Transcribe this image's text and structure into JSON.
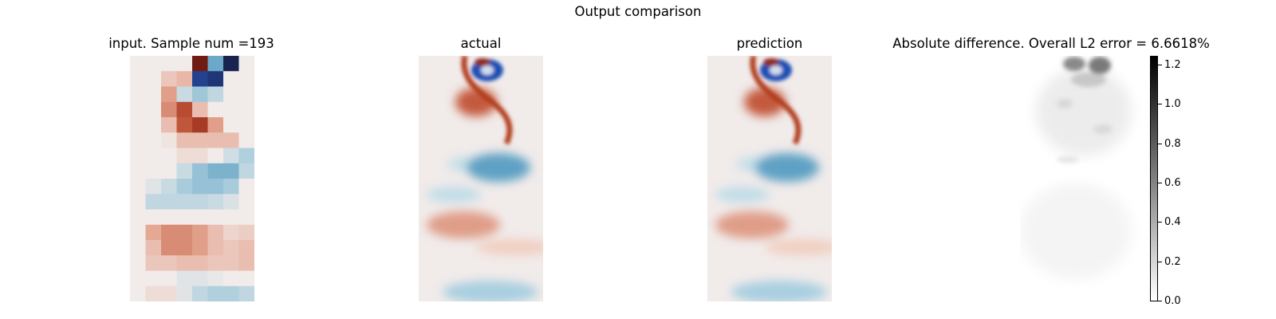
{
  "figure": {
    "suptitle": "Output comparison"
  },
  "chart_data": [
    {
      "type": "heatmap",
      "title": "input. Sample num =193",
      "grid": false,
      "colormap": "red-white-blue diverging",
      "rows": 16,
      "cols": 8
    },
    {
      "type": "heatmap",
      "title": "actual",
      "grid": false,
      "colormap": "red-white-blue diverging"
    },
    {
      "type": "heatmap",
      "title": "prediction",
      "grid": false,
      "colormap": "red-white-blue diverging"
    },
    {
      "type": "heatmap",
      "title": "Absolute difference. Overall L2 error = 6.6618%",
      "grid": false,
      "colormap": "grayscale (white to black)",
      "colorbar": {
        "range": [
          0.0,
          1.25
        ],
        "ticks": [
          0.0,
          0.2,
          0.4,
          0.6,
          0.8,
          1.0,
          1.2
        ],
        "tick_labels": [
          "0.0",
          "0.2",
          "0.4",
          "0.6",
          "0.8",
          "1.0",
          "1.2"
        ]
      }
    }
  ],
  "input_grid": [
    [
      0,
      0,
      0,
      0,
      3,
      -1.6,
      -3.5,
      0
    ],
    [
      0,
      0,
      0.5,
      0.7,
      -3,
      -3.2,
      0,
      0
    ],
    [
      0,
      0,
      1,
      -0.5,
      -1,
      -0.6,
      0,
      0
    ],
    [
      0,
      0,
      1.2,
      2,
      0.6,
      0,
      0,
      0
    ],
    [
      0,
      0,
      0.6,
      1.8,
      2.3,
      1,
      0,
      0
    ],
    [
      0,
      0,
      0.1,
      0.6,
      0.6,
      0.6,
      0.6,
      0
    ],
    [
      0,
      0,
      0,
      0.2,
      0.2,
      0,
      -0.4,
      -0.8
    ],
    [
      0,
      0,
      0,
      -0.5,
      -1.1,
      -1.4,
      -1.4,
      -0.6
    ],
    [
      0,
      -0.2,
      -0.5,
      -0.9,
      -1.1,
      -1.1,
      -0.9,
      0
    ],
    [
      0,
      -0.6,
      -0.6,
      -0.6,
      -0.6,
      -0.5,
      -0.3,
      0
    ],
    [
      0,
      0,
      0,
      0,
      0,
      0,
      0,
      0
    ],
    [
      0,
      0.9,
      1.2,
      1.2,
      1,
      0.6,
      0.3,
      0.4
    ],
    [
      0,
      0.6,
      1.2,
      1.2,
      1,
      0.6,
      0.5,
      0.6
    ],
    [
      0,
      0.5,
      0.5,
      0.6,
      0.6,
      0.5,
      0.5,
      0.6
    ],
    [
      0,
      0,
      0,
      -0.2,
      -0.2,
      -0.1,
      0,
      0
    ],
    [
      0,
      0.2,
      0.2,
      -0.2,
      -0.6,
      -0.8,
      -0.8,
      -0.6
    ]
  ]
}
